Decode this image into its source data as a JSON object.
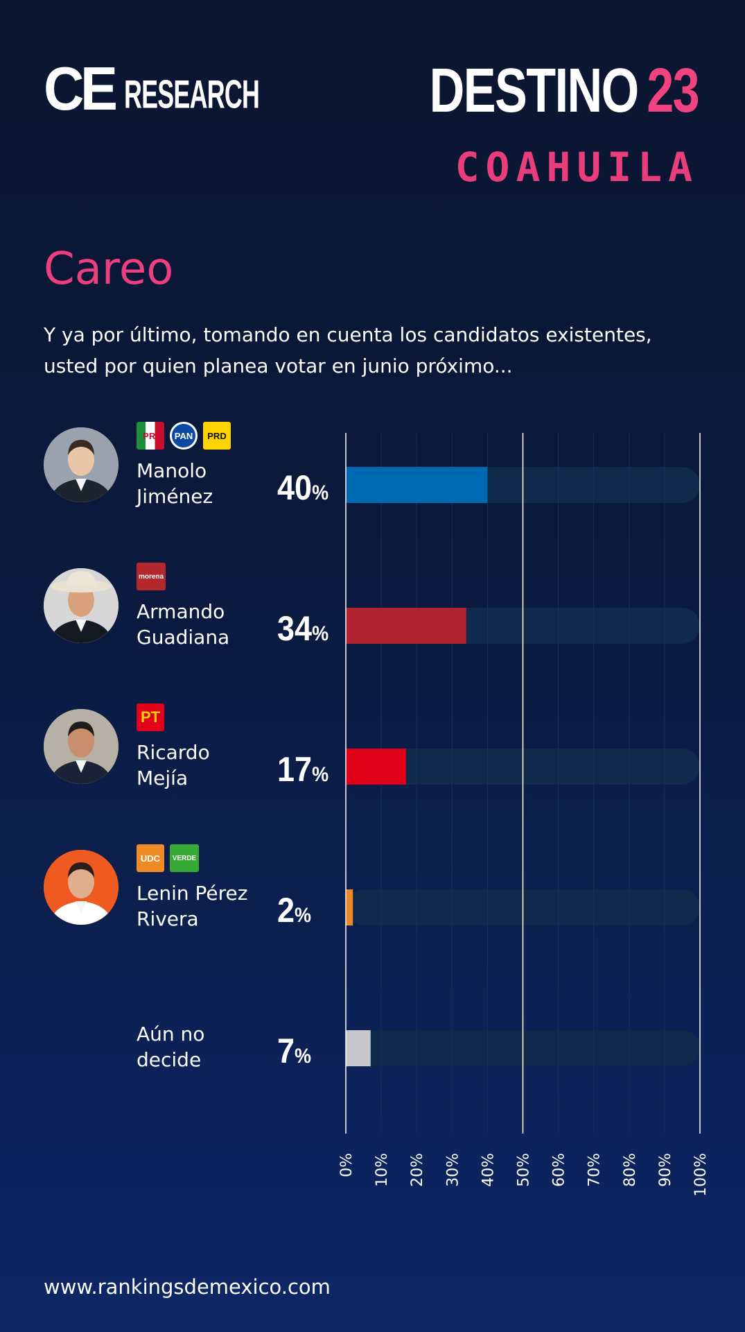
{
  "header": {
    "brand_left_main": "CE",
    "brand_left_rest": "RESEARCH",
    "brand_right_word": "DESTINO",
    "brand_right_number": "23",
    "state": "COAHUILA"
  },
  "section_title": "Careo",
  "question": "Y ya por último, tomando en cuenta los candidatos existentes, usted por quien planea votar en junio próximo...",
  "candidates": [
    {
      "name_line1": "Manolo",
      "name_line2": "Jiménez",
      "pct_value": "40",
      "pct_sign": "%",
      "badges": [
        {
          "text": "PRI",
          "icon": "pri-logo-icon",
          "bg": "#ffffff",
          "fg": "#c8102e"
        },
        {
          "text": "PAN",
          "icon": "pan-logo-icon",
          "bg": "#0b4aa2",
          "fg": "#ffffff"
        },
        {
          "text": "PRD",
          "icon": "prd-logo-icon",
          "bg": "#ffd400",
          "fg": "#111111"
        }
      ]
    },
    {
      "name_line1": "Armando",
      "name_line2": "Guadiana",
      "pct_value": "34",
      "pct_sign": "%",
      "badges": [
        {
          "text": "morena",
          "icon": "morena-logo-icon",
          "bg": "#b3282d",
          "fg": "#ffffff"
        }
      ]
    },
    {
      "name_line1": "Ricardo",
      "name_line2": "Mejía",
      "pct_value": "17",
      "pct_sign": "%",
      "badges": [
        {
          "text": "PT",
          "icon": "pt-logo-icon",
          "bg": "#e2001a",
          "fg": "#ffd400"
        }
      ]
    },
    {
      "name_line1": "Lenin Pérez",
      "name_line2": "Rivera",
      "pct_value": "2",
      "pct_sign": "%",
      "badges": [
        {
          "text": "UDC",
          "icon": "udc-logo-icon",
          "bg": "#f08a24",
          "fg": "#ffffff"
        },
        {
          "text": "VERDE",
          "icon": "verde-logo-icon",
          "bg": "#37a935",
          "fg": "#ffffff"
        }
      ]
    },
    {
      "name_line1": "Aún no",
      "name_line2": "decide",
      "pct_value": "7",
      "pct_sign": "%",
      "badges": []
    }
  ],
  "chart_data": {
    "type": "bar",
    "orientation": "horizontal",
    "categories": [
      "Manolo Jiménez",
      "Armando Guadiana",
      "Ricardo Mejía",
      "Lenin Pérez Rivera",
      "Aún no decide"
    ],
    "values": [
      40,
      34,
      17,
      2,
      7
    ],
    "colors": [
      "#0069b4",
      "#b0232f",
      "#e1001a",
      "#ef8a2a",
      "#c8c8cc"
    ],
    "track_color": "#102a4c",
    "xlim": [
      0,
      100
    ],
    "x_ticks": [
      "0%",
      "10%",
      "20%",
      "30%",
      "40%",
      "50%",
      "60%",
      "70%",
      "80%",
      "90%",
      "100%"
    ],
    "major_gridlines": [
      0,
      50,
      100
    ],
    "grid": true
  },
  "footer": {
    "url": "www.rankingsdemexico.com"
  }
}
